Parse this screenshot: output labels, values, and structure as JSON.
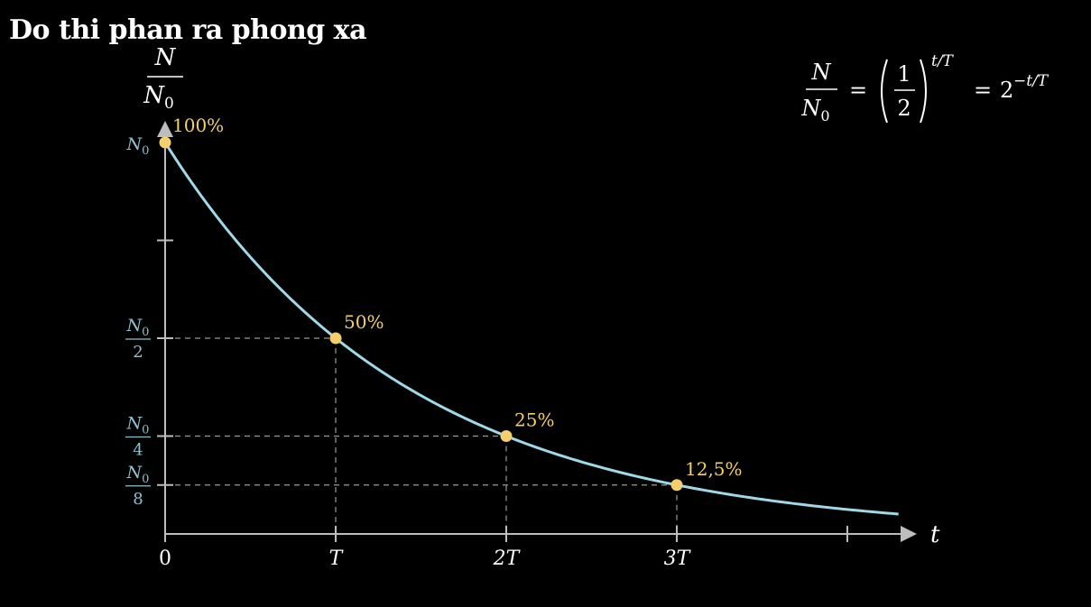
{
  "title": "Do thi phan ra phong xa",
  "colors": {
    "background": "#000000",
    "curve": "#9fd9e8",
    "point": "#f5cf6b",
    "axis": "#bdbdbd",
    "ytick_label": "#8fbfd0",
    "guide": "#9a9a9a",
    "text": "#ffffff"
  },
  "formula": {
    "lhs_num": "N",
    "lhs_den": "N",
    "lhs_den_sub": "0",
    "eq1": "=",
    "paren_num": "1",
    "paren_den": "2",
    "exponent": "t/T",
    "eq2": "=",
    "rhs_base": "2",
    "rhs_exponent": "−t/T"
  },
  "chart_data": {
    "type": "line",
    "function": "N/N0 = 2^(-t/T)",
    "xlabel": "t",
    "ylabel": {
      "num": "N",
      "den": "N",
      "den_sub": "0"
    },
    "xlim": [
      0,
      4.3
    ],
    "ylim": [
      0,
      1.0
    ],
    "grid": false,
    "x_ticks": [
      {
        "value": 0,
        "label": "0"
      },
      {
        "value": 1,
        "label": "T"
      },
      {
        "value": 2,
        "label": "2T"
      },
      {
        "value": 3,
        "label": "3T"
      },
      {
        "value": 4,
        "label": ""
      }
    ],
    "y_ticks": [
      {
        "value": 1.0,
        "num": "N",
        "sub": "0",
        "den": ""
      },
      {
        "value": 0.75,
        "num": "",
        "sub": "",
        "den": ""
      },
      {
        "value": 0.5,
        "num": "N",
        "sub": "0",
        "den": "2"
      },
      {
        "value": 0.25,
        "num": "N",
        "sub": "0",
        "den": "4"
      },
      {
        "value": 0.125,
        "num": "N",
        "sub": "0",
        "den": "8"
      }
    ],
    "points": [
      {
        "x": 0,
        "y": 1.0,
        "label": "100%"
      },
      {
        "x": 1,
        "y": 0.5,
        "label": "50%"
      },
      {
        "x": 2,
        "y": 0.25,
        "label": "25%"
      },
      {
        "x": 3,
        "y": 0.125,
        "label": "12,5%"
      }
    ]
  }
}
